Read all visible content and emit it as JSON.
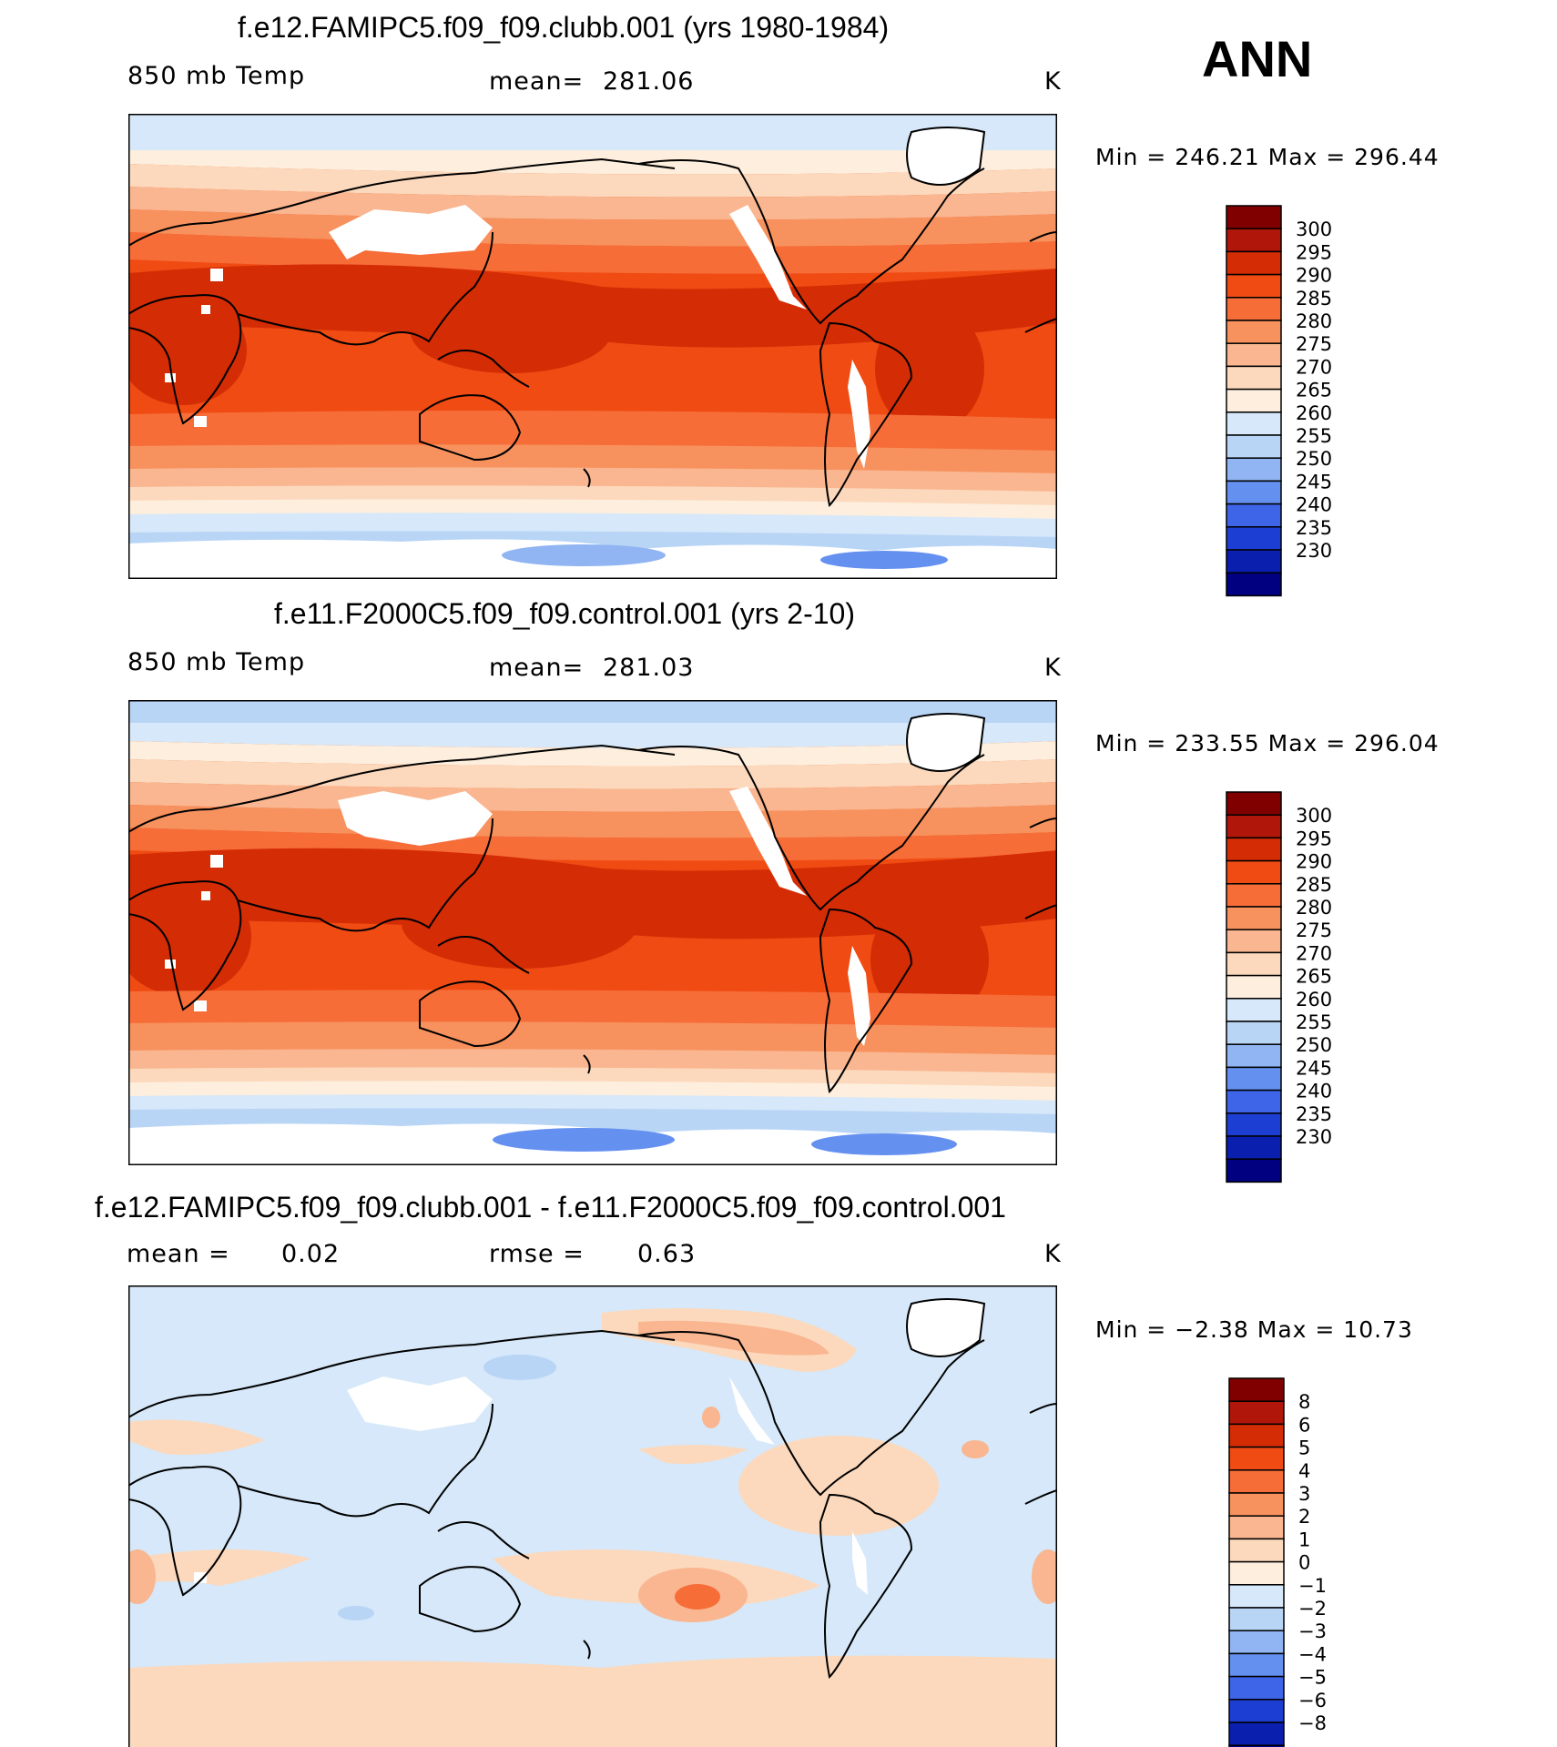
{
  "season": "ANN",
  "panels": [
    {
      "id": "test",
      "title": "f.e12.FAMIPC5.f09_f09.clubb.001 (yrs 1980-1984)",
      "variable": "850 mb Temp",
      "mean_label": "mean=",
      "mean_value": "281.06",
      "units": "K",
      "min_text": "Min  =  246.21  Max  =  296.44"
    },
    {
      "id": "control",
      "title": "f.e11.F2000C5.f09_f09.control.001 (yrs 2-10)",
      "variable": "850 mb Temp",
      "mean_label": "mean=",
      "mean_value": "281.03",
      "units": "K",
      "min_text": "Min  =  233.55  Max  =  296.04"
    },
    {
      "id": "diff",
      "title": "f.e12.FAMIPC5.f09_f09.clubb.001 - f.e11.F2000C5.f09_f09.control.001",
      "mean_label": "mean  =",
      "mean_value": "0.02",
      "rmse_label": "rmse  =",
      "rmse_value": "0.63",
      "units": "K",
      "min_text": "Min  =    −2.38  Max  =    10.73"
    }
  ],
  "colorbars": {
    "temp": {
      "labels": [
        "300",
        "295",
        "290",
        "285",
        "280",
        "275",
        "270",
        "265",
        "260",
        "255",
        "250",
        "245",
        "240",
        "235",
        "230"
      ],
      "colors": [
        "#800000",
        "#b0160a",
        "#d42c05",
        "#f04b12",
        "#f66d38",
        "#f7925f",
        "#f9b690",
        "#fcd9bd",
        "#fdeedd",
        "#d6e8f9",
        "#b9d5f6",
        "#90b5f2",
        "#6490f0",
        "#3e64e8",
        "#1c3ed2",
        "#0a1fae",
        "#000080"
      ]
    },
    "diff": {
      "labels": [
        "8",
        "6",
        "5",
        "4",
        "3",
        "2",
        "1",
        "0",
        "−1",
        "−2",
        "−3",
        "−4",
        "−5",
        "−6",
        "−8"
      ],
      "colors": [
        "#800000",
        "#b0160a",
        "#d42c05",
        "#f04b12",
        "#f66d38",
        "#f7925f",
        "#f9b690",
        "#fcd9bd",
        "#fdeedd",
        "#d6e8f9",
        "#b9d5f6",
        "#90b5f2",
        "#6490f0",
        "#3e64e8",
        "#1c3ed2",
        "#0a1fae",
        "#000080"
      ]
    }
  },
  "chart_data": [
    {
      "type": "heatmap",
      "title": "f.e12.FAMIPC5.f09_f09.clubb.001 (yrs 1980-1984)",
      "variable": "850 mb Temp",
      "units": "K",
      "mean": 281.06,
      "min": 246.21,
      "max": 296.44,
      "projection": "cylindrical equidistant, centered on Pacific",
      "contour_levels": [
        230,
        235,
        240,
        245,
        250,
        255,
        260,
        265,
        270,
        275,
        280,
        285,
        290,
        295,
        300
      ]
    },
    {
      "type": "heatmap",
      "title": "f.e11.F2000C5.f09_f09.control.001 (yrs 2-10)",
      "variable": "850 mb Temp",
      "units": "K",
      "mean": 281.03,
      "min": 233.55,
      "max": 296.04,
      "contour_levels": [
        230,
        235,
        240,
        245,
        250,
        255,
        260,
        265,
        270,
        275,
        280,
        285,
        290,
        295,
        300
      ]
    },
    {
      "type": "heatmap",
      "title": "f.e12.FAMIPC5.f09_f09.clubb.001 - f.e11.F2000C5.f09_f09.control.001",
      "units": "K",
      "mean": 0.02,
      "rmse": 0.63,
      "min": -2.38,
      "max": 10.73,
      "contour_levels": [
        -8,
        -6,
        -5,
        -4,
        -3,
        -2,
        -1,
        0,
        1,
        2,
        3,
        4,
        5,
        6,
        8
      ]
    }
  ]
}
